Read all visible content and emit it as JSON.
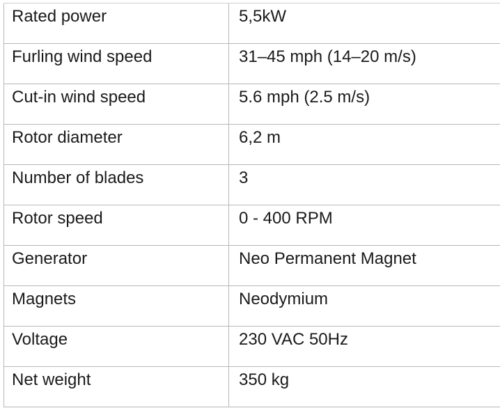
{
  "spec_table": {
    "rows": [
      {
        "label": "Rated power",
        "value": "5,5kW"
      },
      {
        "label": "Furling wind speed",
        "value": "31–45 mph (14–20 m/s)"
      },
      {
        "label": "Cut-in wind speed",
        "value": "5.6 mph (2.5 m/s)"
      },
      {
        "label": "Rotor diameter",
        "value": "6,2 m"
      },
      {
        "label": "Number of blades",
        "value": "3"
      },
      {
        "label": "Rotor speed",
        "value": "0 - 400 RPM"
      },
      {
        "label": "Generator",
        "value": "Neo Permanent Magnet"
      },
      {
        "label": "Magnets",
        "value": "Neodymium"
      },
      {
        "label": "Voltage",
        "value": "230 VAC 50Hz"
      },
      {
        "label": "Net weight",
        "value": "350 kg"
      }
    ]
  }
}
